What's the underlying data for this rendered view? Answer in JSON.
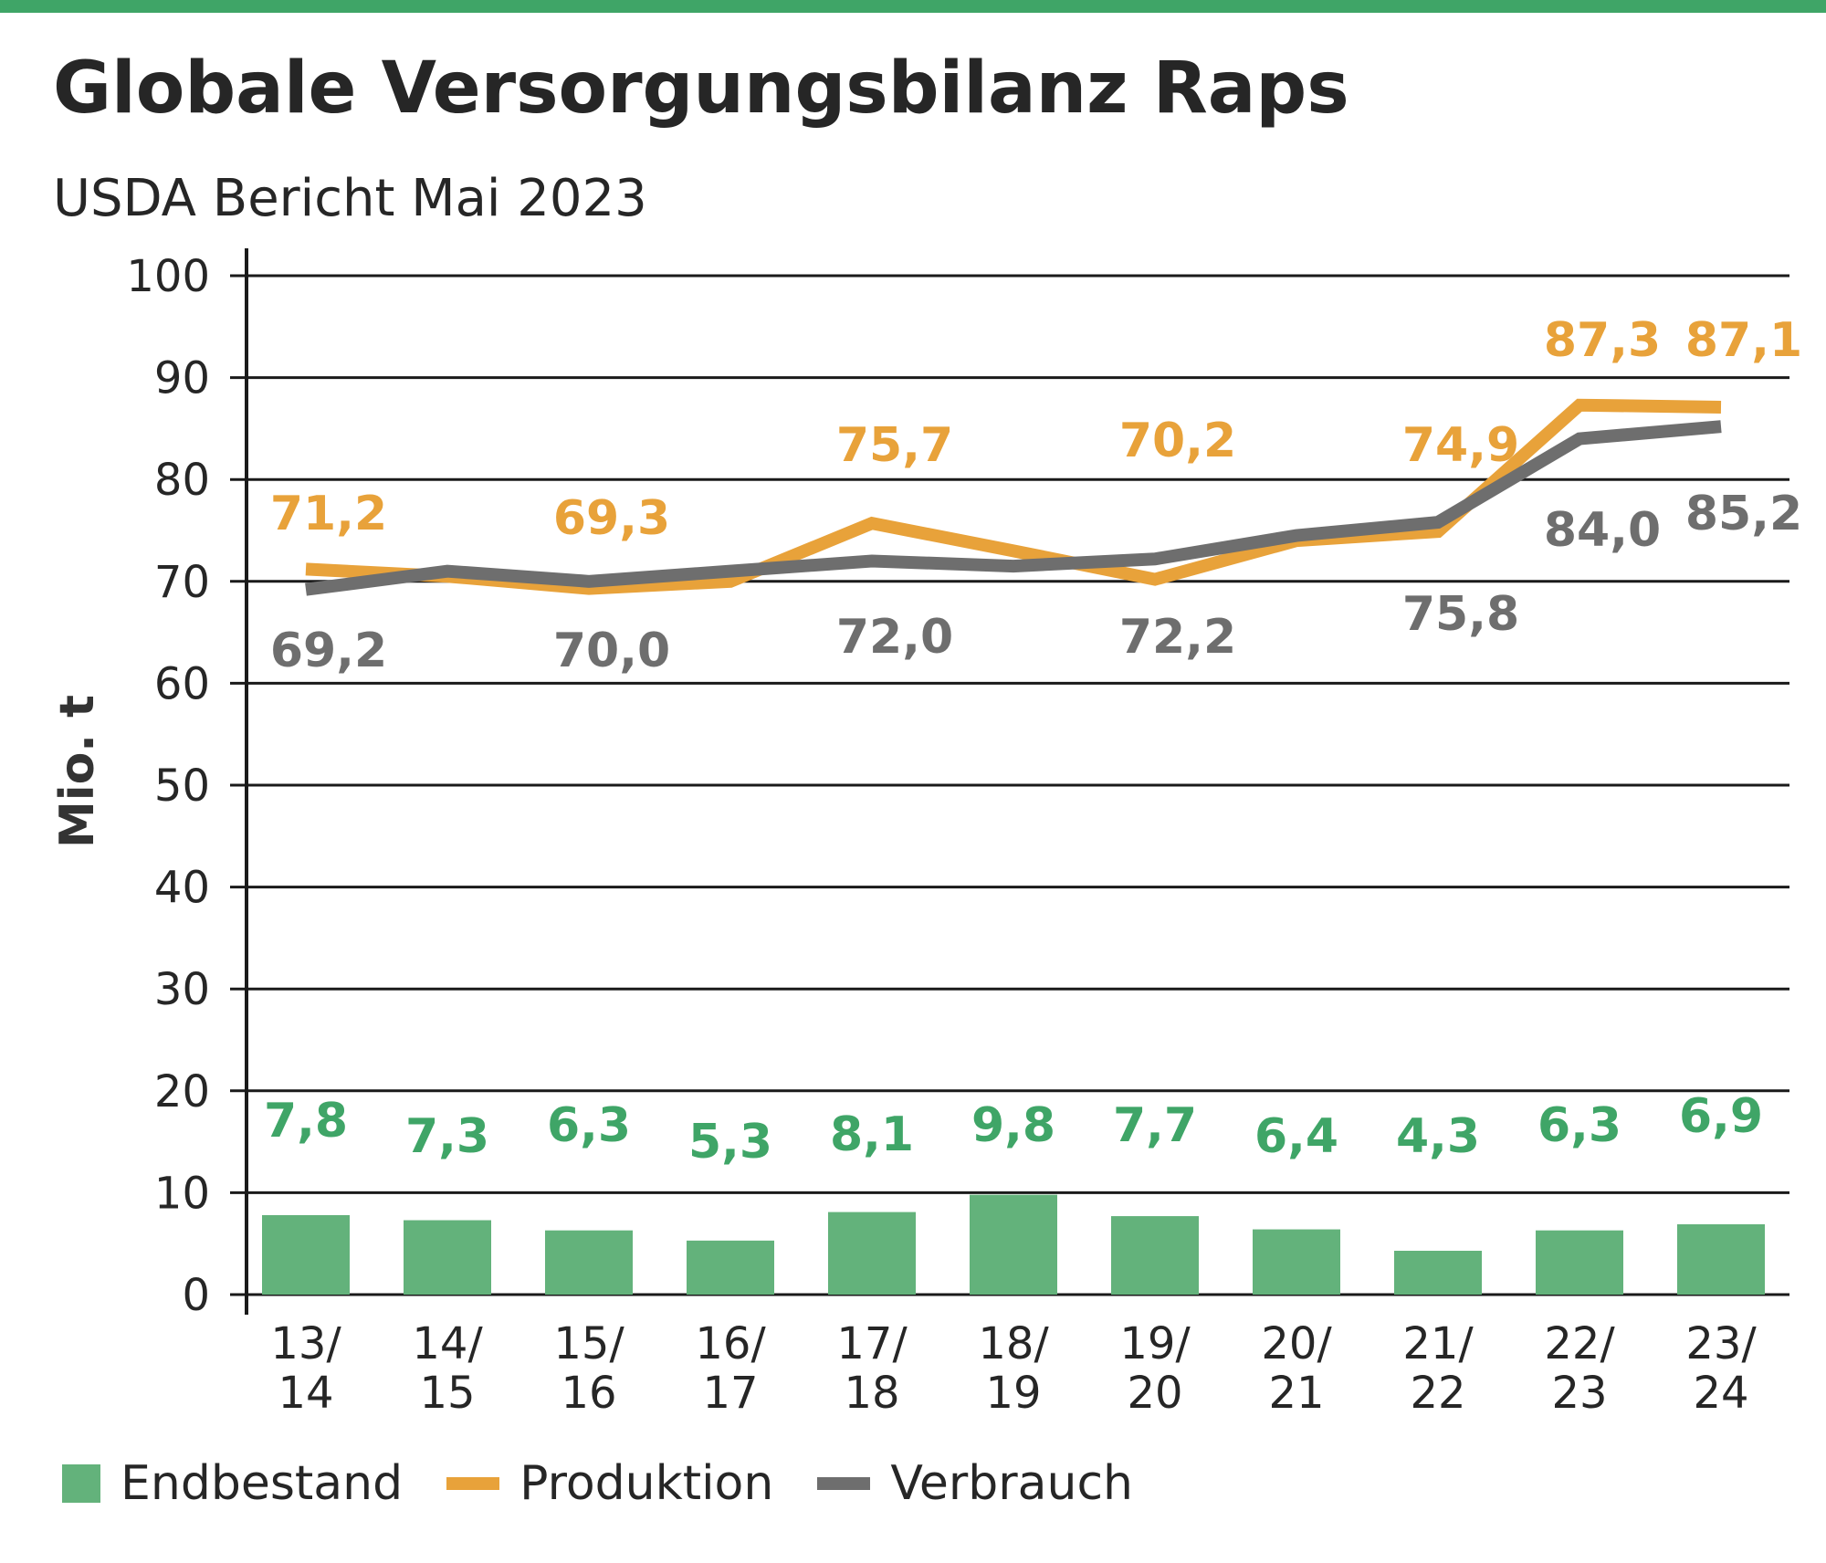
{
  "title": "Globale Versorgungsbilanz Raps",
  "subtitle": "USDA Bericht Mai 2023",
  "colors": {
    "accent_bar": "#3fa567",
    "endbestand": "#63b27b",
    "endbestand_label": "#3fa567",
    "produktion": "#e8a23a",
    "verbrauch": "#6e6e6e",
    "grid": "#1a1a1a"
  },
  "legend": {
    "endbestand": "Endbestand",
    "produktion": "Produktion",
    "verbrauch": "Verbrauch"
  },
  "chart_data": {
    "type": "bar+line",
    "title": "Globale Versorgungsbilanz Raps",
    "subtitle": "USDA Bericht Mai 2023",
    "ylabel": "Mio. t",
    "xlabel": "",
    "ylim": [
      0,
      100
    ],
    "yticks": [
      0,
      10,
      20,
      30,
      40,
      50,
      60,
      70,
      80,
      90,
      100
    ],
    "grid": true,
    "legend_position": "bottom",
    "categories": [
      [
        "13/",
        "14"
      ],
      [
        "14/",
        "15"
      ],
      [
        "15/",
        "16"
      ],
      [
        "16/",
        "17"
      ],
      [
        "17/",
        "18"
      ],
      [
        "18/",
        "19"
      ],
      [
        "19/",
        "20"
      ],
      [
        "20/",
        "21"
      ],
      [
        "21/",
        "22"
      ],
      [
        "22/",
        "23"
      ],
      [
        "23/",
        "24"
      ]
    ],
    "series": [
      {
        "name": "Endbestand",
        "kind": "bar",
        "values": [
          7.8,
          7.3,
          6.3,
          5.3,
          8.1,
          9.8,
          7.7,
          6.4,
          4.3,
          6.3,
          6.9
        ],
        "labels": [
          "7,8",
          "7,3",
          "6,3",
          "5,3",
          "8,1",
          "9,8",
          "7,7",
          "6,4",
          "4,3",
          "6,3",
          "6,9"
        ]
      },
      {
        "name": "Produktion",
        "kind": "line",
        "values": [
          71.2,
          70.5,
          69.3,
          70.0,
          75.7,
          73.0,
          70.2,
          74.0,
          74.9,
          87.3,
          87.1
        ],
        "labels": [
          "71,2",
          "",
          "69,3",
          "",
          "75,7",
          "",
          "70,2",
          "",
          "74,9",
          "87,3",
          "87,1"
        ]
      },
      {
        "name": "Verbrauch",
        "kind": "line",
        "values": [
          69.2,
          71.0,
          70.0,
          71.0,
          72.0,
          71.5,
          72.2,
          74.5,
          75.8,
          84.0,
          85.2
        ],
        "labels": [
          "69,2",
          "",
          "70,0",
          "",
          "72,0",
          "",
          "72,2",
          "",
          "75,8",
          "84,0",
          "85,2"
        ]
      }
    ]
  }
}
